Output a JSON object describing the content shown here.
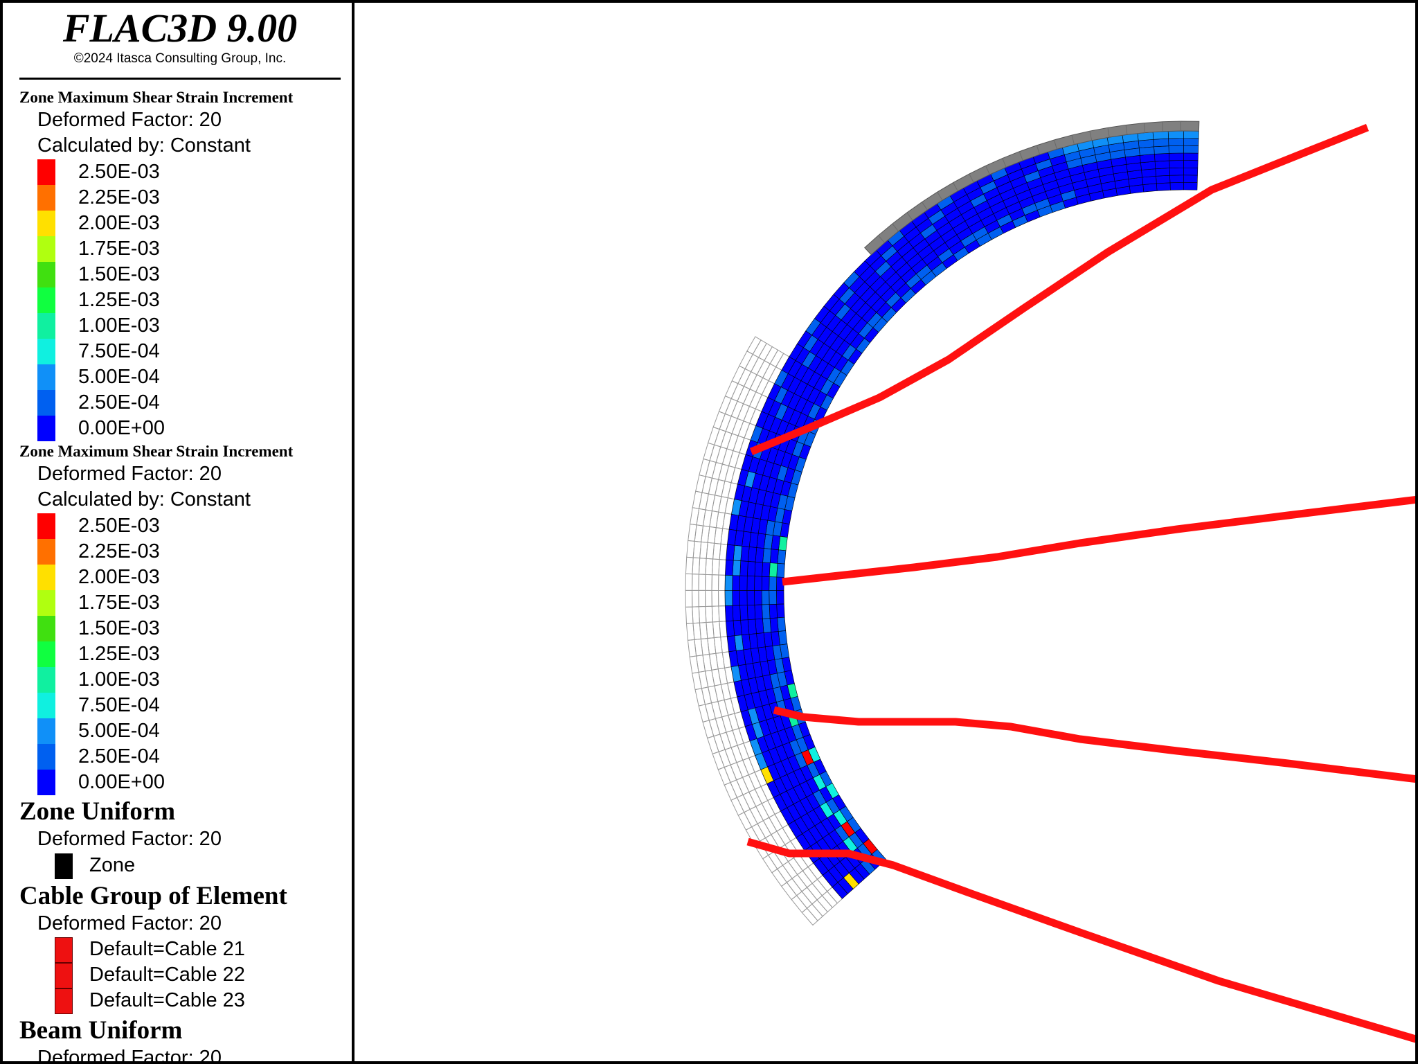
{
  "app": {
    "title": "FLAC3D 9.00",
    "copyright": "©2024 Itasca Consulting Group, Inc."
  },
  "legend": {
    "strain_sections": [
      {
        "title": "Zone Maximum Shear Strain Increment",
        "deformed": "Deformed Factor: 20",
        "calculated": "Calculated by: Constant",
        "levels": [
          {
            "label": "2.50E-03",
            "color": "#ff0000"
          },
          {
            "label": "2.25E-03",
            "color": "#ff7000"
          },
          {
            "label": "2.00E-03",
            "color": "#ffe000"
          },
          {
            "label": "1.75E-03",
            "color": "#b0ff10"
          },
          {
            "label": "1.50E-03",
            "color": "#40e010"
          },
          {
            "label": "1.25E-03",
            "color": "#10ff40"
          },
          {
            "label": "1.00E-03",
            "color": "#10f0a0"
          },
          {
            "label": "7.50E-04",
            "color": "#10f0e0"
          },
          {
            "label": "5.00E-04",
            "color": "#1090f8"
          },
          {
            "label": "2.50E-04",
            "color": "#0060f0"
          },
          {
            "label": "0.00E+00",
            "color": "#0000ff"
          }
        ]
      },
      {
        "title": "Zone Maximum Shear Strain Increment",
        "deformed": "Deformed Factor: 20",
        "calculated": "Calculated by: Constant",
        "levels": [
          {
            "label": "2.50E-03",
            "color": "#ff0000"
          },
          {
            "label": "2.25E-03",
            "color": "#ff7000"
          },
          {
            "label": "2.00E-03",
            "color": "#ffe000"
          },
          {
            "label": "1.75E-03",
            "color": "#b0ff10"
          },
          {
            "label": "1.50E-03",
            "color": "#40e010"
          },
          {
            "label": "1.25E-03",
            "color": "#10ff40"
          },
          {
            "label": "1.00E-03",
            "color": "#10f0a0"
          },
          {
            "label": "7.50E-04",
            "color": "#10f0e0"
          },
          {
            "label": "5.00E-04",
            "color": "#1090f8"
          },
          {
            "label": "2.50E-04",
            "color": "#0060f0"
          },
          {
            "label": "0.00E+00",
            "color": "#0000ff"
          }
        ]
      }
    ],
    "zone_uniform": {
      "title": "Zone Uniform",
      "deformed": "Deformed Factor: 20",
      "item": "Zone"
    },
    "cable_group": {
      "title": "Cable Group of Element",
      "deformed": "Deformed Factor: 20",
      "items": [
        "Default=Cable 21",
        "Default=Cable 22",
        "Default=Cable 23"
      ]
    },
    "beam_uniform": {
      "title": "Beam Uniform",
      "deformed": "Deformed Factor: 20"
    }
  },
  "colors": {
    "cable": "#ff1010",
    "beam": "#808080",
    "zone_base": "#0000e8",
    "zone_mid": "#0060f0",
    "mesh_outline": "#000000"
  }
}
